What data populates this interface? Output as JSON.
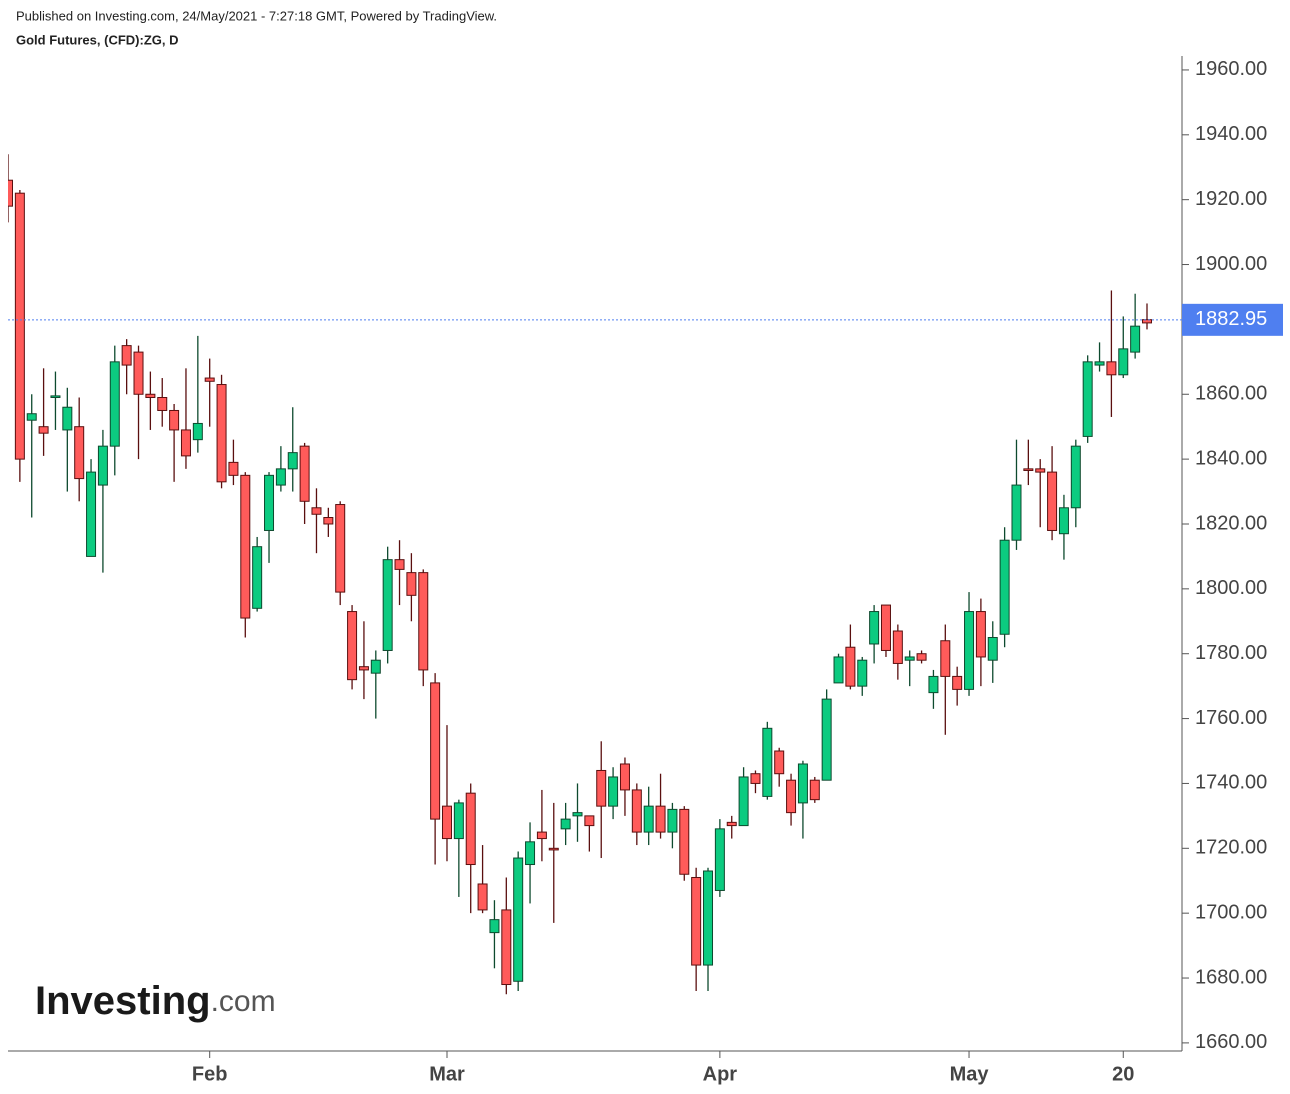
{
  "header": {
    "published": "Published on Investing.com, 24/May/2021 - 7:27:18 GMT, Powered by TradingView."
  },
  "logo": {
    "name": "Investing",
    "suffix": ".com"
  },
  "chart_data": {
    "type": "candlestick",
    "title": "Gold Futures, (CFD):ZG, D",
    "categories": [
      null,
      null,
      null,
      null,
      null,
      null,
      null,
      null,
      null,
      null,
      null,
      null,
      null,
      null,
      null,
      null,
      null,
      "Feb",
      null,
      null,
      null,
      null,
      null,
      null,
      null,
      null,
      null,
      null,
      null,
      null,
      null,
      null,
      null,
      null,
      null,
      null,
      null,
      "Mar",
      null,
      null,
      null,
      null,
      null,
      null,
      null,
      null,
      null,
      null,
      null,
      null,
      null,
      null,
      null,
      null,
      null,
      null,
      null,
      null,
      null,
      null,
      "Apr",
      null,
      null,
      null,
      null,
      null,
      null,
      null,
      null,
      null,
      null,
      null,
      null,
      null,
      null,
      null,
      null,
      null,
      null,
      null,
      null,
      "May",
      null,
      null,
      null,
      null,
      null,
      null,
      null,
      null,
      null,
      null,
      null,
      null,
      "20",
      null,
      null
    ],
    "open": [
      1926,
      1922,
      1852,
      1850,
      1859,
      1849,
      1850,
      1810,
      1832,
      1844,
      1875,
      1873,
      1860,
      1859,
      1855,
      1849,
      1846,
      1865,
      1863,
      1839,
      1835,
      1794,
      1818,
      1832,
      1837,
      1844,
      1825,
      1822,
      1826,
      1793,
      1776,
      1774,
      1781,
      1809,
      1805,
      1805,
      1771,
      1733,
      1723,
      1737,
      1709,
      1694,
      1701,
      1679,
      1715,
      1725,
      1720,
      1726,
      1730,
      1730,
      1744,
      1733,
      1746,
      1738,
      1725,
      1733,
      1725,
      1732,
      1711,
      1684,
      1707,
      1728,
      1727,
      1743,
      1736,
      1750,
      1741,
      1734,
      1741,
      1741,
      1771,
      1782,
      1770,
      1783,
      1795,
      1787,
      1778,
      1780,
      1768,
      1784,
      1773,
      1769,
      1793,
      1778,
      1786,
      1815,
      1837,
      1837,
      1836,
      1817,
      1825,
      1847,
      1869,
      1870,
      1866,
      1873,
      1883
    ],
    "high": [
      1934,
      1923,
      1860,
      1868,
      1867,
      1862,
      1859,
      1840,
      1849,
      1875,
      1877,
      1875,
      1867,
      1865,
      1857,
      1868,
      1878,
      1871,
      1866,
      1846,
      1836,
      1816,
      1836,
      1844,
      1856,
      1845,
      1831,
      1825,
      1827,
      1795,
      1790,
      1781,
      1813,
      1815,
      1811,
      1806,
      1774,
      1758,
      1735,
      1740,
      1721,
      1704,
      1711,
      1719,
      1728,
      1738,
      1734,
      1734,
      1740,
      1730,
      1753,
      1745,
      1748,
      1740,
      1739,
      1743,
      1734,
      1733,
      1714,
      1714,
      1729,
      1730,
      1745,
      1744,
      1759,
      1751,
      1743,
      1747,
      1742,
      1769,
      1780,
      1789,
      1779,
      1795,
      1795,
      1789,
      1781,
      1781,
      1775,
      1789,
      1776,
      1799,
      1797,
      1790,
      1819,
      1846,
      1846,
      1840,
      1844,
      1829,
      1846,
      1872,
      1876,
      1892,
      1884,
      1891,
      1888
    ],
    "low": [
      1913,
      1833,
      1822,
      1841,
      1849,
      1830,
      1827,
      1810,
      1805,
      1835,
      1860,
      1840,
      1849,
      1850,
      1833,
      1837,
      1842,
      1850,
      1831,
      1832,
      1785,
      1793,
      1808,
      1830,
      1830,
      1820,
      1811,
      1816,
      1795,
      1769,
      1766,
      1760,
      1777,
      1795,
      1790,
      1770,
      1715,
      1716,
      1705,
      1700,
      1700,
      1683,
      1675,
      1676,
      1703,
      1716,
      1697,
      1721,
      1722,
      1719,
      1717,
      1729,
      1730,
      1721,
      1721,
      1723,
      1720,
      1710,
      1676,
      1676,
      1705,
      1723,
      1727,
      1737,
      1735,
      1739,
      1727,
      1723,
      1734,
      1741,
      1771,
      1769,
      1767,
      1777,
      1779,
      1772,
      1770,
      1777,
      1763,
      1755,
      1764,
      1767,
      1770,
      1771,
      1782,
      1812,
      1832,
      1819,
      1815,
      1809,
      1819,
      1845,
      1867,
      1853,
      1865,
      1871,
      1880
    ],
    "close": [
      1918,
      1840,
      1854,
      1848,
      1859.5,
      1856,
      1834,
      1836,
      1844,
      1870,
      1869,
      1860,
      1859,
      1855,
      1849,
      1841,
      1851,
      1864,
      1833,
      1835,
      1791,
      1813,
      1835,
      1837,
      1842,
      1827,
      1823,
      1820,
      1799,
      1772,
      1775,
      1778,
      1809,
      1806,
      1798,
      1775,
      1729,
      1723,
      1734,
      1715,
      1701,
      1698,
      1678,
      1717,
      1722,
      1723,
      1719.5,
      1729,
      1731,
      1727,
      1733,
      1742,
      1738,
      1725,
      1733,
      1725,
      1732,
      1712,
      1684,
      1713,
      1726,
      1727,
      1742,
      1740,
      1757,
      1743,
      1731,
      1746,
      1735,
      1766,
      1779,
      1770,
      1778,
      1793,
      1781,
      1777,
      1779,
      1778,
      1773,
      1773,
      1769,
      1793,
      1779,
      1785,
      1815,
      1832,
      1836.5,
      1836,
      1818,
      1825,
      1844,
      1870,
      1870,
      1866,
      1874,
      1881,
      1882
    ],
    "up_color": "#0ccb80",
    "down_color": "#ff5b5a",
    "up_outline": "#0d4a2e",
    "down_outline": "#5a0f0f",
    "ylim": [
      1657.5,
      1964.3
    ],
    "yticks": [
      {
        "value": 1660,
        "label": "1660.00"
      },
      {
        "value": 1680,
        "label": "1680.00"
      },
      {
        "value": 1700,
        "label": "1700.00"
      },
      {
        "value": 1720,
        "label": "1720.00"
      },
      {
        "value": 1740,
        "label": "1740.00"
      },
      {
        "value": 1760,
        "label": "1760.00"
      },
      {
        "value": 1780,
        "label": "1780.00"
      },
      {
        "value": 1800,
        "label": "1800.00"
      },
      {
        "value": 1820,
        "label": "1820.00"
      },
      {
        "value": 1840,
        "label": "1840.00"
      },
      {
        "value": 1860,
        "label": "1860.00"
      },
      {
        "value": 1880,
        "label": "1880.00"
      },
      {
        "value": 1900,
        "label": "1900.00"
      },
      {
        "value": 1920,
        "label": "1920.00"
      },
      {
        "value": 1940,
        "label": "1940.00"
      },
      {
        "value": 1960,
        "label": "1960.00"
      }
    ],
    "last_price": 1882.95,
    "last_price_color": "#4f7ff0",
    "grid": false
  }
}
